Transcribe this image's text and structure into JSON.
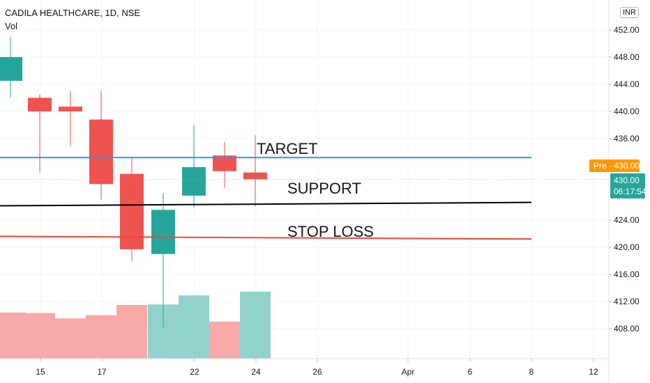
{
  "header": {
    "symbol_title": "CADILA HEALTHCARE, 1D, NSE",
    "volume_label": "Vol",
    "currency": "INR"
  },
  "price_badges": {
    "premarket": "Pre · 430.00",
    "last_price": "430.00",
    "countdown": "06:17:54"
  },
  "colors": {
    "up": "#26a69a",
    "down": "#ef5350",
    "up_volume": "#92d2cc",
    "down_volume": "#f7a9a7",
    "target_line": "#2196f3",
    "support_line": "#000000",
    "stoploss_line": "#f44336",
    "premarket_badge": "#ff9800",
    "last_price_badge": "#26a69a"
  },
  "chart_data": {
    "type": "candlestick",
    "title": "CADILA HEALTHCARE, 1D, NSE",
    "y_axis": {
      "ticks": [
        "452.00",
        "448.00",
        "444.00",
        "440.00",
        "436.00",
        "424.00",
        "420.00",
        "416.00",
        "412.00",
        "408.00"
      ],
      "range": [
        403.8,
        456.3
      ],
      "side": "right"
    },
    "x_axis": {
      "ticks": [
        "15",
        "17",
        "22",
        "24",
        "26",
        "Apr",
        "6",
        "8",
        "12"
      ]
    },
    "candles": [
      {
        "o": 444.5,
        "h": 451.0,
        "l": 442.0,
        "c": 448.0
      },
      {
        "o": 442.0,
        "h": 442.5,
        "l": 431.0,
        "c": 440.0
      },
      {
        "o": 440.7,
        "h": 443.0,
        "l": 435.0,
        "c": 440.0
      },
      {
        "o": 438.8,
        "h": 443.0,
        "l": 427.0,
        "c": 429.3
      },
      {
        "o": 430.8,
        "h": 433.2,
        "l": 418.0,
        "c": 419.7
      },
      {
        "o": 419.0,
        "h": 428.0,
        "l": 408.2,
        "c": 425.5
      },
      {
        "o": 427.6,
        "h": 438.0,
        "l": 425.8,
        "c": 431.8
      },
      {
        "o": 433.5,
        "h": 435.5,
        "l": 428.7,
        "c": 431.2
      },
      {
        "o": 431.0,
        "h": 436.5,
        "l": 426.0,
        "c": 430.0
      }
    ],
    "volume": [
      {
        "v": 0.86,
        "dir": "down"
      },
      {
        "v": 0.85,
        "dir": "down"
      },
      {
        "v": 0.75,
        "dir": "down"
      },
      {
        "v": 0.81,
        "dir": "down"
      },
      {
        "v": 1.0,
        "dir": "down"
      },
      {
        "v": 1.01,
        "dir": "up"
      },
      {
        "v": 1.18,
        "dir": "up"
      },
      {
        "v": 0.69,
        "dir": "down"
      },
      {
        "v": 1.25,
        "dir": "up"
      }
    ],
    "lines": [
      {
        "name": "TARGET",
        "price_start": 433.2,
        "price_end": 433.2
      },
      {
        "name": "SUPPORT",
        "price_start": 426.1,
        "price_end": 426.6
      },
      {
        "name": "STOP LOSS",
        "price_start": 421.6,
        "price_end": 421.2
      }
    ],
    "last_price": 430.0
  }
}
